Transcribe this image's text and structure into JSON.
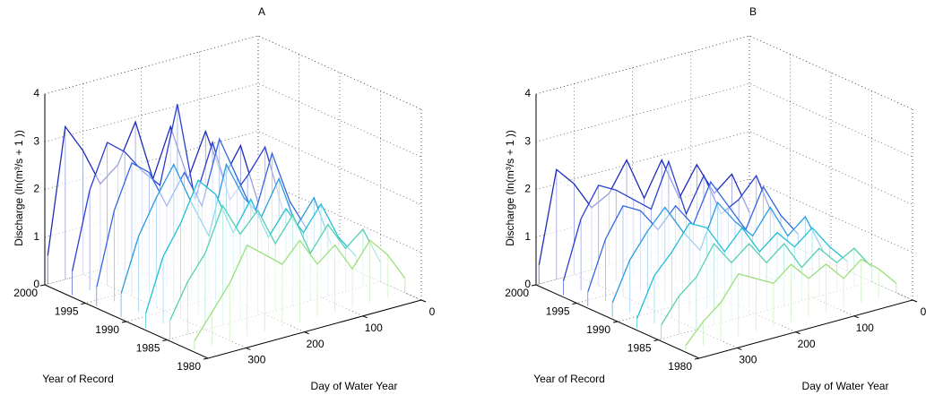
{
  "chart_data": [
    {
      "type": "waterfall",
      "title": "A",
      "xlabel": "Day of Water Year",
      "ylabel": "Year of Record",
      "zlabel": "Discharge (ln(m³/s + 1 ))",
      "xlim": [
        0,
        365
      ],
      "xticks": [
        0,
        100,
        200,
        300
      ],
      "ylim": [
        1980,
        2000
      ],
      "yticks": [
        1980,
        1985,
        1990,
        1995,
        2000
      ],
      "zlim": [
        0,
        4
      ],
      "zticks": [
        0,
        1,
        2,
        3,
        4
      ],
      "grid": true,
      "x": [
        0,
        30,
        60,
        90,
        120,
        150,
        180,
        210,
        240,
        270,
        300,
        330,
        360
      ],
      "series": [
        {
          "year": 2000,
          "color": "#1c2bb8",
          "values": [
            0.5,
            1.8,
            1.2,
            2.3,
            1.4,
            2.6,
            1.6,
            2.9,
            2.1,
            1.8,
            2.6,
            3.2,
            0.6
          ]
        },
        {
          "year": 1997,
          "color": "#2a3fd0",
          "values": [
            0.6,
            2.0,
            1.5,
            1.1,
            2.4,
            1.3,
            3.4,
            1.8,
            2.2,
            2.7,
            3.0,
            2.1,
            0.5
          ]
        },
        {
          "year": 1994,
          "color": "#3366e0",
          "values": [
            0.4,
            1.1,
            2.2,
            1.0,
            1.9,
            2.8,
            1.5,
            2.3,
            1.7,
            2.5,
            2.8,
            1.9,
            0.4
          ]
        },
        {
          "year": 1991,
          "color": "#2a9be0",
          "values": [
            0.3,
            1.4,
            0.9,
            2.0,
            1.3,
            1.8,
            2.6,
            1.2,
            2.0,
            2.9,
            2.3,
            1.6,
            0.5
          ]
        },
        {
          "year": 1988,
          "color": "#20c0d8",
          "values": [
            0.3,
            0.8,
            1.6,
            1.1,
            1.7,
            1.2,
            2.1,
            1.5,
            2.4,
            2.8,
            2.0,
            1.4,
            0.3
          ]
        },
        {
          "year": 1985,
          "color": "#55d0b0",
          "values": [
            0.4,
            1.2,
            0.9,
            1.5,
            1.0,
            1.9,
            1.4,
            2.2,
            1.8,
            2.5,
            1.6,
            1.1,
            0.4
          ]
        },
        {
          "year": 1982,
          "color": "#99e07a",
          "values": [
            0.3,
            0.9,
            1.3,
            0.8,
            1.4,
            1.1,
            1.7,
            1.3,
            1.6,
            1.9,
            1.2,
            0.7,
            0.2
          ]
        }
      ]
    },
    {
      "type": "waterfall",
      "title": "B",
      "xlabel": "Day of Water Year",
      "ylabel": "Year of Record",
      "zlabel": "Discharge (ln(m³/s + 1 ))",
      "xlim": [
        0,
        365
      ],
      "xticks": [
        0,
        100,
        200,
        300
      ],
      "ylim": [
        1980,
        2000
      ],
      "yticks": [
        1980,
        1985,
        1990,
        1995,
        2000
      ],
      "zlim": [
        0,
        4
      ],
      "zticks": [
        0,
        1,
        2,
        3,
        4
      ],
      "grid": true,
      "x": [
        0,
        30,
        60,
        90,
        120,
        150,
        180,
        210,
        240,
        270,
        300,
        330,
        360
      ],
      "series": [
        {
          "year": 2000,
          "color": "#1c2bb8",
          "values": [
            0.3,
            1.2,
            0.9,
            1.6,
            1.0,
            1.9,
            1.2,
            2.1,
            1.5,
            1.3,
            1.9,
            2.3,
            0.4
          ]
        },
        {
          "year": 1997,
          "color": "#2a3fd0",
          "values": [
            0.4,
            1.4,
            1.0,
            0.8,
            1.7,
            1.0,
            2.2,
            1.3,
            1.6,
            1.9,
            2.1,
            1.5,
            0.3
          ]
        },
        {
          "year": 1994,
          "color": "#3366e0",
          "values": [
            0.3,
            0.8,
            1.5,
            0.7,
            1.3,
            1.9,
            1.1,
            1.6,
            1.2,
            1.7,
            1.9,
            1.3,
            0.3
          ]
        },
        {
          "year": 1991,
          "color": "#2a9be0",
          "values": [
            0.2,
            1.0,
            0.7,
            1.4,
            0.9,
            1.3,
            1.8,
            0.9,
            1.4,
            2.0,
            1.6,
            1.1,
            0.3
          ]
        },
        {
          "year": 1988,
          "color": "#20c0d8",
          "values": [
            0.2,
            0.6,
            1.1,
            0.8,
            1.2,
            0.9,
            1.5,
            1.1,
            1.7,
            1.9,
            1.4,
            1.0,
            0.2
          ]
        },
        {
          "year": 1985,
          "color": "#55d0b0",
          "values": [
            0.3,
            0.8,
            0.6,
            1.0,
            0.7,
            1.3,
            1.0,
            1.5,
            1.2,
            1.7,
            1.1,
            0.8,
            0.3
          ]
        },
        {
          "year": 1982,
          "color": "#99e07a",
          "values": [
            0.2,
            0.6,
            0.9,
            0.6,
            1.0,
            0.8,
            1.2,
            0.9,
            1.1,
            1.3,
            0.8,
            0.5,
            0.1
          ]
        }
      ]
    }
  ]
}
